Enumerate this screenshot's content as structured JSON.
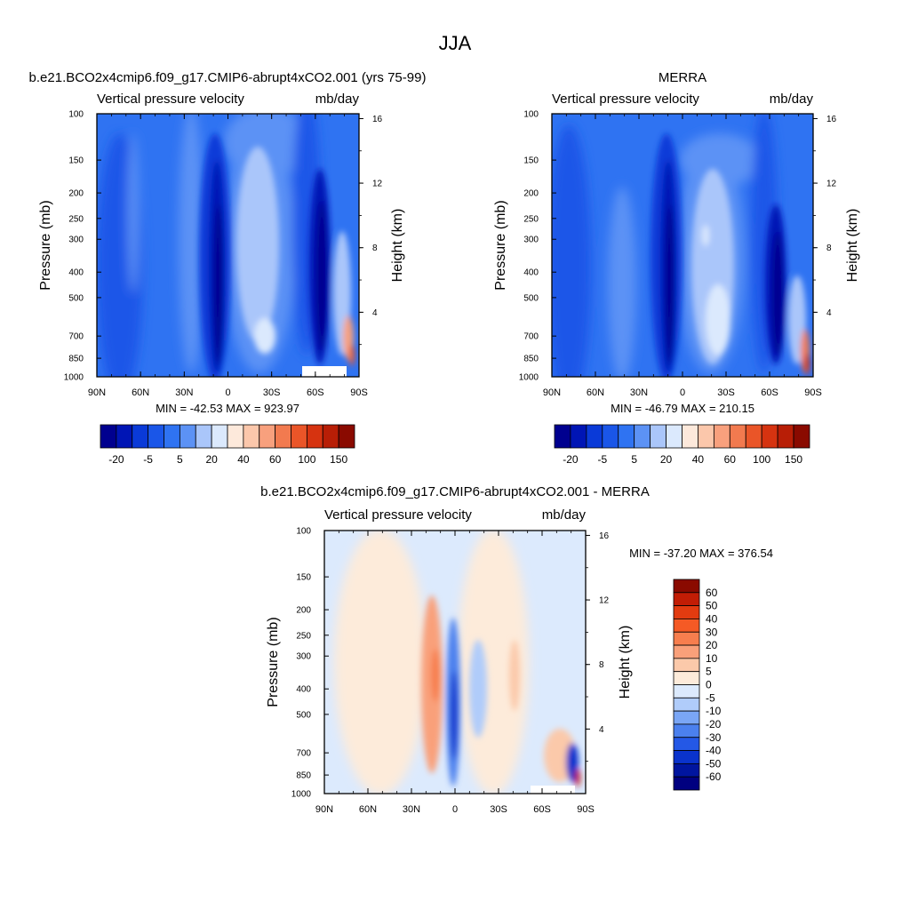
{
  "figure": {
    "title": "JJA"
  },
  "chart_data": [
    {
      "type": "heatmap",
      "title": "b.e21.BCO2x4cmip6.f09_g17.CMIP6-abrupt4xCO2.001 (yrs 75-99)",
      "subtitle_left": "Vertical pressure velocity",
      "subtitle_right": "mb/day",
      "ylabel": "Pressure (mb)",
      "ylabel_right": "Height (km)",
      "x_ticks": [
        "90N",
        "60N",
        "30N",
        "0",
        "30S",
        "60S",
        "90S"
      ],
      "y_ticks": [
        "100",
        "150",
        "200",
        "250",
        "300",
        "400",
        "500",
        "700",
        "850",
        "1000"
      ],
      "y_ticks_right": [
        "16",
        "12",
        "8",
        "4"
      ],
      "stats": "MIN = -42.53  MAX = 923.97",
      "colorbar_labels": [
        "-20",
        "-5",
        "5",
        "20",
        "40",
        "60",
        "100",
        "150"
      ],
      "colorbar_colors": [
        "#00008f",
        "#0015b5",
        "#0a3ad8",
        "#1a56e8",
        "#2f73f2",
        "#5c92f5",
        "#aac6fa",
        "#dbe9fd",
        "#fde9db",
        "#fbc7ab",
        "#f8a07d",
        "#f27a4f",
        "#ea5528",
        "#d63310",
        "#b81e06",
        "#8a0a00"
      ],
      "xlim": [
        "90N",
        "90S"
      ],
      "ylim": [
        1000,
        100
      ]
    },
    {
      "type": "heatmap",
      "title": "MERRA",
      "subtitle_left": "Vertical pressure velocity",
      "subtitle_right": "mb/day",
      "ylabel": "Pressure (mb)",
      "ylabel_right": "Height (km)",
      "x_ticks": [
        "90N",
        "60N",
        "30N",
        "0",
        "30S",
        "60S",
        "90S"
      ],
      "y_ticks": [
        "100",
        "150",
        "200",
        "250",
        "300",
        "400",
        "500",
        "700",
        "850",
        "1000"
      ],
      "y_ticks_right": [
        "16",
        "12",
        "8",
        "4"
      ],
      "stats": "MIN = -46.79  MAX = 210.15",
      "colorbar_labels": [
        "-20",
        "-5",
        "5",
        "20",
        "40",
        "60",
        "100",
        "150"
      ],
      "colorbar_colors": [
        "#00008f",
        "#0015b5",
        "#0a3ad8",
        "#1a56e8",
        "#2f73f2",
        "#5c92f5",
        "#aac6fa",
        "#dbe9fd",
        "#fde9db",
        "#fbc7ab",
        "#f8a07d",
        "#f27a4f",
        "#ea5528",
        "#d63310",
        "#b81e06",
        "#8a0a00"
      ],
      "xlim": [
        "90N",
        "90S"
      ],
      "ylim": [
        1000,
        100
      ]
    },
    {
      "type": "heatmap",
      "title": "b.e21.BCO2x4cmip6.f09_g17.CMIP6-abrupt4xCO2.001 - MERRA",
      "subtitle_left": "Vertical pressure velocity",
      "subtitle_right": "mb/day",
      "ylabel": "Pressure (mb)",
      "ylabel_right": "Height (km)",
      "x_ticks": [
        "90N",
        "60N",
        "30N",
        "0",
        "30S",
        "60S",
        "90S"
      ],
      "y_ticks": [
        "100",
        "150",
        "200",
        "250",
        "300",
        "400",
        "500",
        "700",
        "850",
        "1000"
      ],
      "y_ticks_right": [
        "16",
        "12",
        "8",
        "4"
      ],
      "stats": "MIN = -37.20  MAX = 376.54",
      "colorbar_labels": [
        "60",
        "50",
        "40",
        "30",
        "20",
        "10",
        "5",
        "0",
        "-5",
        "-10",
        "-20",
        "-30",
        "-40",
        "-50",
        "-60"
      ],
      "colorbar_colors": [
        "#8a0a00",
        "#c21d05",
        "#e23b10",
        "#f55a25",
        "#f77e4e",
        "#f9a07a",
        "#fbc9aa",
        "#fdebda",
        "#dceafd",
        "#b0ccfa",
        "#7aa6f5",
        "#4b80ee",
        "#2458e6",
        "#0a33cc",
        "#00159f",
        "#000080"
      ],
      "xlim": [
        "90N",
        "90S"
      ],
      "ylim": [
        1000,
        100
      ]
    }
  ]
}
